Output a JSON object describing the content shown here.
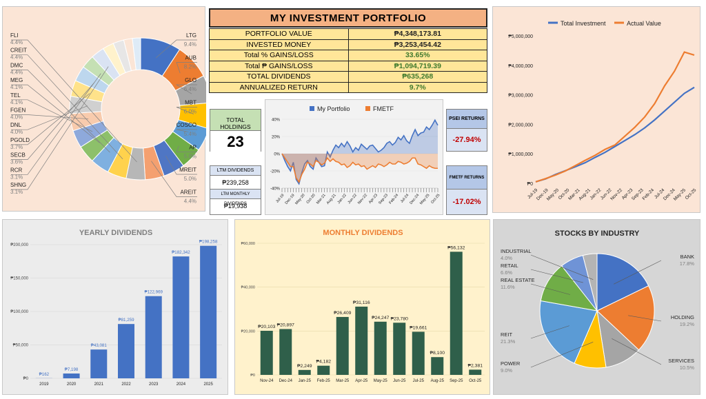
{
  "summary": {
    "title": "MY INVESTMENT PORTFOLIO",
    "rows": [
      {
        "label": "PORTFOLIO VALUE",
        "value": "₱4,348,173.81",
        "green": false
      },
      {
        "label": "INVESTED MONEY",
        "value": "₱3,253,454.42",
        "green": false
      },
      {
        "label": "Total % GAINS/LOSS",
        "value": "33.65%",
        "green": true
      },
      {
        "label": "Total ₱ GAINS/LOSS",
        "value": "₱1,094,719.39",
        "green": true
      },
      {
        "label": "TOTAL DIVIDENDS",
        "value": "₱635,268",
        "green": true
      },
      {
        "label": "ANNUALIZED RETURN",
        "value": "9.7%",
        "green": true
      }
    ]
  },
  "holdings": {
    "label": "TOTAL HOLDINGS",
    "value": "23"
  },
  "ltm": {
    "div_label": "LTM DIVIDENDS",
    "div_value": "₱239,258",
    "monthly_label": "LTM MONTHLY DIVIDENDS",
    "monthly_value": "₱19,938"
  },
  "psei": {
    "label": "PSEI RETURNS",
    "value": "-27.94%"
  },
  "fmetf": {
    "label": "FMETF RETURNS",
    "value": "-17.02%"
  },
  "colors": {
    "blue": "#4472c4",
    "orange": "#ed7d31",
    "green": "#2f5f4a",
    "red": "#c00000"
  },
  "chart_data": [
    {
      "id": "holdings_donut",
      "type": "pie",
      "title": "",
      "slices": [
        {
          "label": "LTG",
          "pct": "9.4%",
          "value": 9.4,
          "color": "#4472c4"
        },
        {
          "label": "AUB",
          "pct": "8.2%",
          "value": 8.2,
          "color": "#ed7d31"
        },
        {
          "label": "GLO",
          "pct": "6.4%",
          "value": 6.4,
          "color": "#a5a5a5"
        },
        {
          "label": "MBT",
          "pct": "6.0%",
          "value": 6.0,
          "color": "#ffc000"
        },
        {
          "label": "COSCO",
          "pct": "5.4%",
          "value": 5.4,
          "color": "#5b9bd5"
        },
        {
          "label": "AP",
          "pct": "5.0%",
          "value": 5.0,
          "color": "#70ad47"
        },
        {
          "label": "MREIT",
          "pct": "5.0%",
          "value": 5.0,
          "color": "#4f76c4"
        },
        {
          "label": "AREIT",
          "pct": "4.4%",
          "value": 4.4,
          "color": "#f4a070"
        },
        {
          "label": "FLI",
          "pct": "4.4%",
          "value": 4.4,
          "color": "#b7b7b7"
        },
        {
          "label": "CREIT",
          "pct": "4.4%",
          "value": 4.4,
          "color": "#ffd24d"
        },
        {
          "label": "DMC",
          "pct": "4.4%",
          "value": 4.4,
          "color": "#7fb0e0"
        },
        {
          "label": "MEG",
          "pct": "4.1%",
          "value": 4.1,
          "color": "#8dc06a"
        },
        {
          "label": "TEL",
          "pct": "4.1%",
          "value": 4.1,
          "color": "#8ea9db"
        },
        {
          "label": "FGEN",
          "pct": "4.0%",
          "value": 4.0,
          "color": "#f8cbad"
        },
        {
          "label": "DNL",
          "pct": "4.0%",
          "value": 4.0,
          "color": "#d0d0d0"
        },
        {
          "label": "PGOLD",
          "pct": "3.7%",
          "value": 3.7,
          "color": "#ffe28a"
        },
        {
          "label": "SECB",
          "pct": "3.6%",
          "value": 3.6,
          "color": "#bdd7ee"
        },
        {
          "label": "RCR",
          "pct": "3.1%",
          "value": 3.1,
          "color": "#c5e0b4"
        },
        {
          "label": "SHNG",
          "pct": "3.1%",
          "value": 3.1,
          "color": "#dae3f3"
        },
        {
          "label": "",
          "pct": "",
          "value": 2.6,
          "color": "#fff2cc"
        },
        {
          "label": "",
          "pct": "",
          "value": 2.5,
          "color": "#e7e6e6"
        },
        {
          "label": "",
          "pct": "",
          "value": 2.0,
          "color": "#fbe5d6"
        },
        {
          "label": "",
          "pct": "",
          "value": 1.9,
          "color": "#deebf7"
        }
      ]
    },
    {
      "id": "portfolio_vs_fmetf",
      "type": "area",
      "legend": [
        "My Portfolio",
        "FMETF"
      ],
      "yticks": [
        "40%",
        "20%",
        "0%",
        "-20%",
        "-40%"
      ],
      "ylim": [
        -40,
        40
      ],
      "xticks": [
        "Jul-19",
        "Dec-19",
        "May-20",
        "Oct-20",
        "Mar-21",
        "Aug-21",
        "Jan-22",
        "Jun-22",
        "Nov-22",
        "Apr-23",
        "Sep-23",
        "Feb-24",
        "Jul-24",
        "Dec-24",
        "May-25",
        "Oct-25"
      ],
      "series": [
        {
          "name": "My Portfolio",
          "values": [
            0,
            -8,
            -15,
            -20,
            -10,
            -30,
            -35,
            -22,
            -12,
            -8,
            -15,
            -18,
            -5,
            -10,
            -15,
            -14,
            2,
            -4,
            4,
            10,
            7,
            12,
            8,
            14,
            9,
            2,
            7,
            4,
            11,
            8,
            5,
            9,
            10,
            6,
            2,
            4,
            7,
            12,
            14,
            10,
            13,
            19,
            16,
            21,
            15,
            12,
            21,
            28,
            21,
            24,
            25,
            31,
            28,
            33,
            39,
            33
          ]
        },
        {
          "name": "FMETF",
          "values": [
            0,
            -5,
            -10,
            -15,
            -15,
            -28,
            -33,
            -24,
            -18,
            -10,
            -12,
            -15,
            -8,
            -10,
            -13,
            -11,
            -5,
            -9,
            -6,
            -9,
            -10,
            -13,
            -12,
            -16,
            -14,
            -10,
            -13,
            -12,
            -15,
            -14,
            -18,
            -16,
            -14,
            -16,
            -12,
            -13,
            -15,
            -13,
            -10,
            -12,
            -12,
            -9,
            -10,
            -12,
            -11,
            -9,
            -5,
            -5,
            -12,
            -13,
            -15,
            -17,
            -14,
            -16,
            -17,
            -17
          ]
        }
      ]
    },
    {
      "id": "invest_vs_actual",
      "type": "line",
      "legend": [
        "Total Investment",
        "Actual Value"
      ],
      "yticks": [
        "₱5,000,000",
        "₱4,000,000",
        "₱3,000,000",
        "₱2,000,000",
        "₱1,000,000",
        "₱0"
      ],
      "ylim": [
        0,
        5000000
      ],
      "xticks": [
        "Jul-19",
        "Dec-19",
        "May-20",
        "Oct-20",
        "Mar-21",
        "Aug-21",
        "Jan-22",
        "Jun-22",
        "Nov-22",
        "Apr-23",
        "Sep-23",
        "Feb-24",
        "Jul-24",
        "Dec-24",
        "May-25",
        "Oct-25"
      ],
      "series": [
        {
          "name": "Total Investment",
          "values": [
            50000,
            150000,
            300000,
            430000,
            560000,
            700000,
            880000,
            1050000,
            1250000,
            1450000,
            1650000,
            1880000,
            2150000,
            2450000,
            2750000,
            3050000,
            3253454
          ]
        },
        {
          "name": "Actual Value",
          "values": [
            50000,
            160000,
            280000,
            420000,
            600000,
            780000,
            950000,
            1150000,
            1300000,
            1600000,
            1900000,
            2250000,
            2700000,
            3300000,
            3800000,
            4450000,
            4348174
          ]
        }
      ]
    },
    {
      "id": "yearly_dividends",
      "type": "bar",
      "title": "YEARLY DIVIDENDS",
      "categories": [
        "2019",
        "2020",
        "2021",
        "2022",
        "2023",
        "2024",
        "2025"
      ],
      "values": [
        162,
        7198,
        43081,
        81259,
        122969,
        182342,
        198258
      ],
      "labels": [
        "₱162",
        "₱7,198",
        "₱43,081",
        "₱81,259",
        "₱122,969",
        "₱182,342",
        "₱198,258"
      ],
      "yticks": [
        "₱200,000",
        "₱150,000",
        "₱100,000",
        "₱50,000",
        "₱0"
      ],
      "ylim": [
        0,
        200000
      ]
    },
    {
      "id": "monthly_dividends",
      "type": "bar",
      "title": "MONTHLY DIVIDENDS",
      "categories": [
        "Nov-24",
        "Dec-24",
        "Jan-25",
        "Feb-25",
        "Mar-25",
        "Apr-25",
        "May-25",
        "Jun-25",
        "Jul-25",
        "Aug-25",
        "Sep-25",
        "Oct-25"
      ],
      "values": [
        20103,
        20897,
        2249,
        4182,
        26409,
        31116,
        24247,
        23780,
        19661,
        8100,
        56132,
        2381
      ],
      "labels": [
        "₱20,103",
        "₱20,897",
        "₱2,249",
        "₱4,182",
        "₱26,409",
        "₱31,116",
        "₱24,247",
        "₱23,780",
        "₱19,661",
        "₱8,100",
        "₱56,132",
        "₱2,381"
      ],
      "yticks": [
        "₱60,000",
        "₱40,000",
        "₱20,000",
        "₱0"
      ],
      "ylim": [
        0,
        60000
      ]
    },
    {
      "id": "stocks_by_industry",
      "type": "pie",
      "title": "STOCKS BY INDUSTRY",
      "slices": [
        {
          "label": "BANK",
          "pct": "17.8%",
          "value": 17.8,
          "color": "#4472c4"
        },
        {
          "label": "HOLDING",
          "pct": "19.2%",
          "value": 19.2,
          "color": "#ed7d31"
        },
        {
          "label": "SERVICES",
          "pct": "10.5%",
          "value": 10.5,
          "color": "#a5a5a5"
        },
        {
          "label": "POWER",
          "pct": "9.0%",
          "value": 9.0,
          "color": "#ffc000"
        },
        {
          "label": "REIT",
          "pct": "21.3%",
          "value": 21.3,
          "color": "#5b9bd5"
        },
        {
          "label": "REAL ESTATE",
          "pct": "11.6%",
          "value": 11.6,
          "color": "#70ad47"
        },
        {
          "label": "RETAIL",
          "pct": "6.6%",
          "value": 6.6,
          "color": "#6f93d6"
        },
        {
          "label": "INDUSTRIAL",
          "pct": "4.0%",
          "value": 4.0,
          "color": "#b4b4b4"
        }
      ]
    }
  ]
}
